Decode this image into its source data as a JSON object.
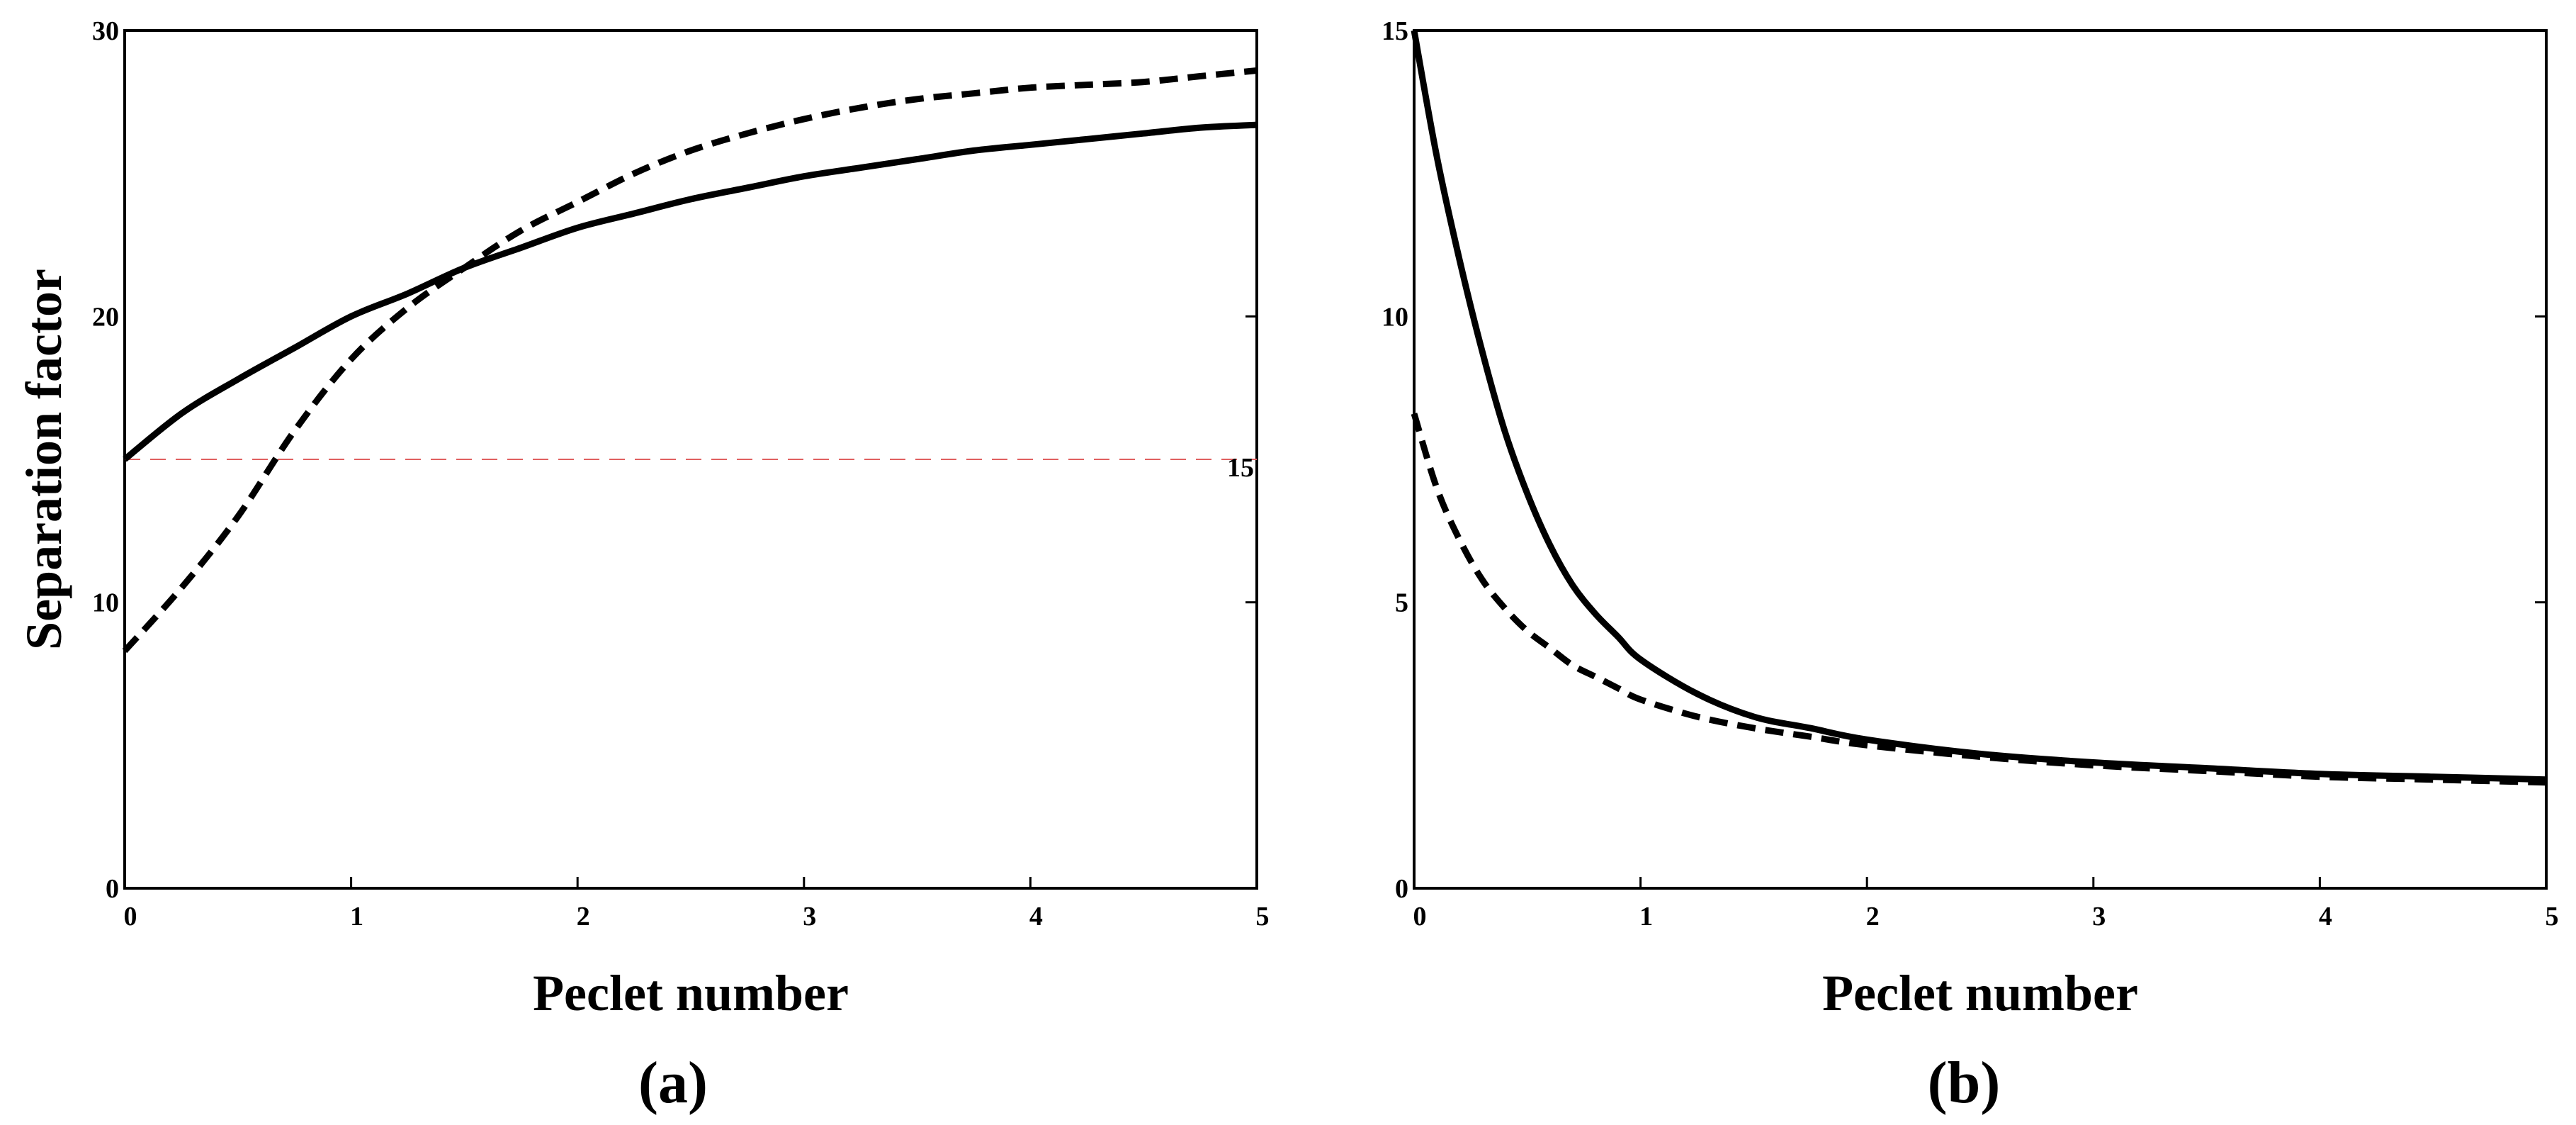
{
  "colors": {
    "axis": "#000000",
    "series": "#000000",
    "reference_line": "#e06060"
  },
  "chart_data": [
    {
      "panel": "a",
      "type": "line",
      "panel_label": "(a)",
      "xlabel": "Peclet number",
      "ylabel": "Separation factor",
      "xlim": [
        0,
        5
      ],
      "ylim": [
        0,
        30
      ],
      "xticks": [
        0,
        1,
        2,
        3,
        4,
        5
      ],
      "yticks": [
        0,
        10,
        20,
        30
      ],
      "xtick_labels": [
        "0",
        "1",
        "2",
        "3",
        "4",
        "5"
      ],
      "ytick_labels": [
        "0",
        "10",
        "20",
        "30"
      ],
      "grid": false,
      "reference_line": {
        "y": 15,
        "label": "15",
        "style": "dashed"
      },
      "series": [
        {
          "name": "solid",
          "style": "solid",
          "x": [
            0,
            0.25,
            0.5,
            0.75,
            1,
            1.25,
            1.5,
            1.75,
            2,
            2.25,
            2.5,
            2.75,
            3,
            3.25,
            3.5,
            3.75,
            4,
            4.25,
            4.5,
            4.75,
            5
          ],
          "y": [
            15.0,
            16.6,
            17.8,
            18.9,
            20.0,
            20.8,
            21.7,
            22.4,
            23.1,
            23.6,
            24.1,
            24.5,
            24.9,
            25.2,
            25.5,
            25.8,
            26.0,
            26.2,
            26.4,
            26.6,
            26.7
          ]
        },
        {
          "name": "dashed",
          "style": "dashed",
          "x": [
            0,
            0.25,
            0.5,
            0.75,
            1,
            1.25,
            1.5,
            1.75,
            2,
            2.25,
            2.5,
            2.75,
            3,
            3.25,
            3.5,
            3.75,
            4,
            4.25,
            4.5,
            4.75,
            5
          ],
          "y": [
            8.3,
            10.5,
            13.0,
            16.0,
            18.5,
            20.3,
            21.7,
            23.0,
            24.0,
            25.0,
            25.8,
            26.4,
            26.9,
            27.3,
            27.6,
            27.8,
            28.0,
            28.1,
            28.2,
            28.4,
            28.6
          ]
        }
      ]
    },
    {
      "panel": "b",
      "type": "line",
      "panel_label": "(b)",
      "xlabel": "Peclet number",
      "ylabel": "",
      "xlim": [
        0,
        5
      ],
      "ylim": [
        0,
        15
      ],
      "xticks": [
        0,
        1,
        2,
        3,
        4,
        5
      ],
      "yticks": [
        0,
        5,
        10,
        15
      ],
      "xtick_labels": [
        "0",
        "1",
        "2",
        "3",
        "4",
        "5"
      ],
      "ytick_labels": [
        "0",
        "5",
        "10",
        "15"
      ],
      "grid": false,
      "series": [
        {
          "name": "solid",
          "style": "solid",
          "x": [
            0,
            0.1,
            0.2,
            0.3,
            0.4,
            0.5,
            0.6,
            0.7,
            0.8,
            0.9,
            1,
            1.25,
            1.5,
            1.75,
            2,
            2.5,
            3,
            3.5,
            4,
            4.5,
            5
          ],
          "y": [
            15.0,
            12.8,
            11.0,
            9.4,
            8.0,
            6.9,
            6.0,
            5.3,
            4.8,
            4.4,
            4.0,
            3.4,
            3.0,
            2.8,
            2.6,
            2.35,
            2.2,
            2.1,
            2.0,
            1.95,
            1.9
          ]
        },
        {
          "name": "dashed",
          "style": "dashed",
          "x": [
            0,
            0.1,
            0.2,
            0.3,
            0.4,
            0.5,
            0.6,
            0.7,
            0.8,
            0.9,
            1,
            1.25,
            1.5,
            1.75,
            2,
            2.5,
            3,
            3.5,
            4,
            4.5,
            5
          ],
          "y": [
            8.3,
            7.0,
            6.1,
            5.4,
            4.9,
            4.5,
            4.2,
            3.9,
            3.7,
            3.5,
            3.3,
            3.0,
            2.8,
            2.65,
            2.5,
            2.3,
            2.15,
            2.05,
            1.95,
            1.9,
            1.85
          ]
        }
      ]
    }
  ]
}
